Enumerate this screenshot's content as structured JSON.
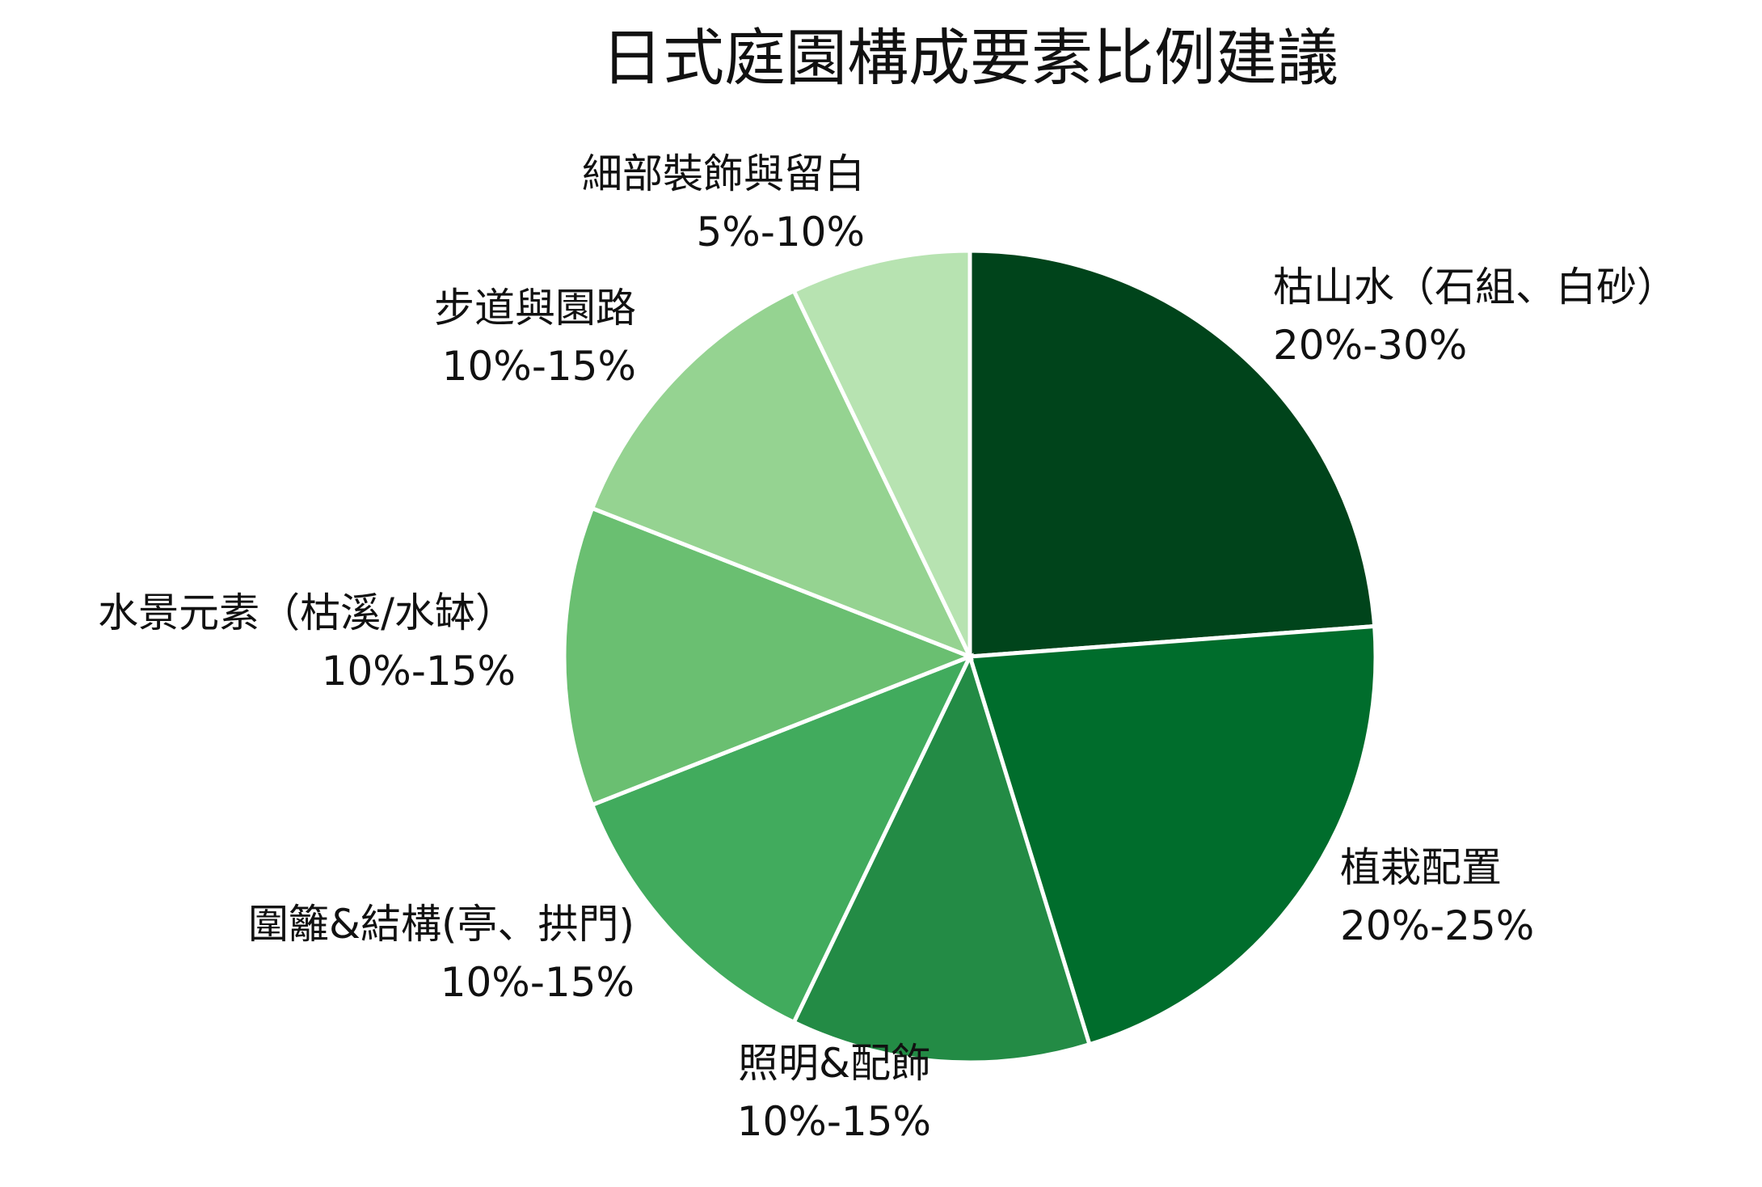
{
  "chart_data": {
    "type": "pie",
    "title": "日式庭園構成要素比例建議",
    "legend": "none",
    "start_angle_deg": 90,
    "direction": "clockwise",
    "slices": [
      {
        "label": "枯山水（石組、白砂）",
        "range": "20%-30%",
        "value": 25,
        "color": "#00441b"
      },
      {
        "label": "植栽配置",
        "range": "20%-25%",
        "value": 22.5,
        "color": "#006d2c"
      },
      {
        "label": "照明&配飾",
        "range": "10%-15%",
        "value": 12.5,
        "color": "#238b45"
      },
      {
        "label": "圍籬&結構(亭、拱門)",
        "range": "10%-15%",
        "value": 12.5,
        "color": "#41ab5d"
      },
      {
        "label": "水景元素（枯溪/水缽）",
        "range": "10%-15%",
        "value": 12.5,
        "color": "#6abf71"
      },
      {
        "label": "步道與園路",
        "range": "10%-15%",
        "value": 12.5,
        "color": "#95d391"
      },
      {
        "label": "細部裝飾與留白",
        "range": "5%-10%",
        "value": 7.5,
        "color": "#b7e3b1"
      }
    ]
  }
}
